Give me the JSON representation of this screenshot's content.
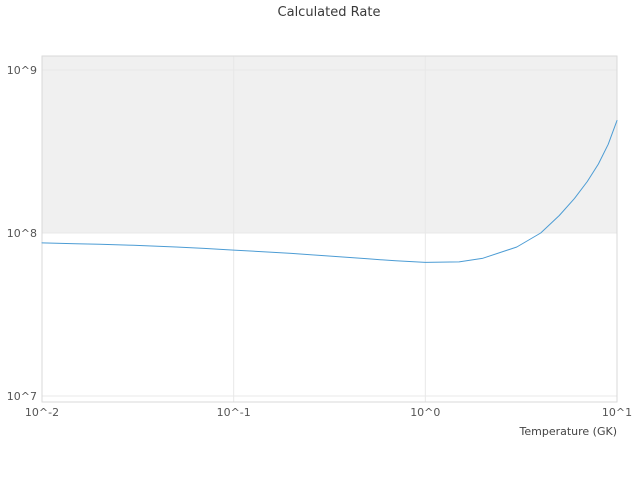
{
  "chart": {
    "title": "Calculated Rate",
    "xlabel": "Temperature (GK)"
  },
  "chart_data": {
    "type": "line",
    "title": "Calculated Rate",
    "xlabel": "Temperature (GK)",
    "ylabel": "",
    "x_scale": "log",
    "y_scale": "log",
    "xlim": [
      0.01,
      10
    ],
    "ylim": [
      10000000,
      1000000000
    ],
    "grid": true,
    "legend": "none",
    "x_tick_values": [
      0.01,
      0.1,
      1,
      10
    ],
    "x_tick_labels": [
      "10^-2",
      "10^-1",
      "10^0",
      "10^1"
    ],
    "y_tick_values": [
      10000000,
      100000000,
      1000000000
    ],
    "y_tick_labels": [
      "10^7",
      "10^8",
      "10^9"
    ],
    "highlight_band": {
      "y_min": 100000000,
      "extends_to_top": true,
      "color": "#f0f0f0"
    },
    "colors": {
      "line": "#4c9cd4",
      "grid": "#e8e8e8",
      "plot_border": "#d9d9d9",
      "plot_background": "#ffffff"
    },
    "series": [
      {
        "name": "Calculated Rate",
        "color": "#4c9cd4",
        "x": [
          0.01,
          0.015,
          0.02,
          0.03,
          0.05,
          0.07,
          0.1,
          0.15,
          0.2,
          0.3,
          0.5,
          0.7,
          1.0,
          1.5,
          2.0,
          3.0,
          4.0,
          5.0,
          6.0,
          7.0,
          8.0,
          9.0,
          10.0
        ],
        "y": [
          87000000,
          86000000,
          85200000,
          84000000,
          82000000,
          80500000,
          78500000,
          76500000,
          75000000,
          72500000,
          69500000,
          67500000,
          66000000,
          66500000,
          70000000,
          82000000,
          100000000,
          128000000,
          163000000,
          207000000,
          265000000,
          350000000,
          490000000
        ]
      }
    ]
  }
}
